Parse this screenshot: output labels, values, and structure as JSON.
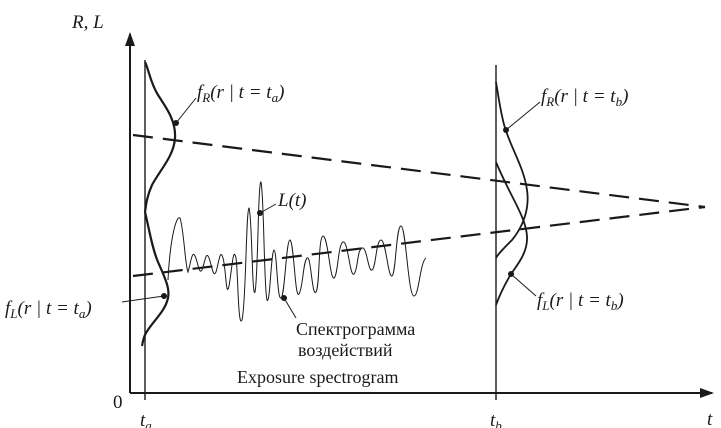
{
  "axes": {
    "y_label": "R, L",
    "x_label": "t",
    "origin_label": "0"
  },
  "labels": {
    "fR_a": {
      "base": "f",
      "sub": "R",
      "mid": "(r | t = t",
      "sub2": "a",
      "end": ")"
    },
    "fR_b": {
      "base": "f",
      "sub": "R",
      "mid": "(r | t = t",
      "sub2": "b",
      "end": ")"
    },
    "fL_a": {
      "base": "f",
      "sub": "L",
      "mid": "(r | t = t",
      "sub2": "a",
      "end": ")"
    },
    "fL_b": {
      "base": "f",
      "sub": "L",
      "mid": "(r | t = t",
      "sub2": "b",
      "end": ")"
    },
    "Lt": "L(t)",
    "ta": {
      "base": "t",
      "sub": "a"
    },
    "tb": {
      "base": "t",
      "sub": "b"
    }
  },
  "caption": {
    "line1": "Спектрограмма",
    "line2": "воздействий",
    "line3": "Exposure spectrogram"
  },
  "colors": {
    "ink": "#1a1a1a"
  }
}
